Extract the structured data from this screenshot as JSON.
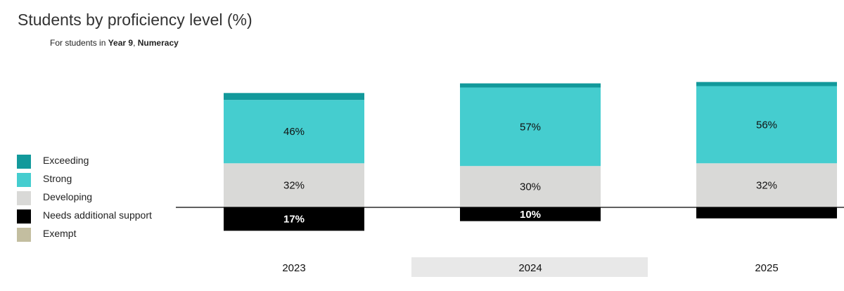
{
  "header": {
    "title": "Students by proficiency level (%)",
    "subtitle_prefix": "For students in ",
    "subtitle_year": "Year 9",
    "subtitle_sep": ", ",
    "subtitle_domain": "Numeracy"
  },
  "colors": {
    "Exceeding": "#12999b",
    "Strong": "#45cdcf",
    "Developing": "#d9d9d7",
    "Needs additional support": "#000000",
    "Exempt": "#c3bea0",
    "highlight_band": "#e8e8e8",
    "baseline": "#000000"
  },
  "legend": [
    {
      "label": "Exceeding",
      "color": "#12999b"
    },
    {
      "label": "Strong",
      "color": "#45cdcf"
    },
    {
      "label": "Developing",
      "color": "#d9d9d7"
    },
    {
      "label": "Needs additional support",
      "color": "#000000"
    },
    {
      "label": "Exempt",
      "color": "#c3bea0"
    }
  ],
  "chart_data": {
    "type": "bar",
    "stacked": "diverging",
    "categories": [
      "2023",
      "2024",
      "2025"
    ],
    "highlighted_category": "2024",
    "series": [
      {
        "name": "Needs additional support",
        "values": [
          17,
          10,
          8
        ],
        "labels": [
          "17%",
          "10%",
          ""
        ]
      },
      {
        "name": "Developing",
        "values": [
          32,
          30,
          32
        ],
        "labels": [
          "32%",
          "30%",
          "32%"
        ]
      },
      {
        "name": "Strong",
        "values": [
          46,
          57,
          56
        ],
        "labels": [
          "46%",
          "57%",
          "56%"
        ]
      },
      {
        "name": "Exceeding",
        "values": [
          5,
          3,
          3
        ],
        "labels": [
          "",
          "",
          ""
        ]
      },
      {
        "name": "Exempt",
        "values": [
          0,
          0,
          0
        ],
        "labels": [
          "",
          "",
          ""
        ]
      }
    ],
    "title": "Students by proficiency level (%)",
    "legend_position": "left",
    "grid": false
  }
}
